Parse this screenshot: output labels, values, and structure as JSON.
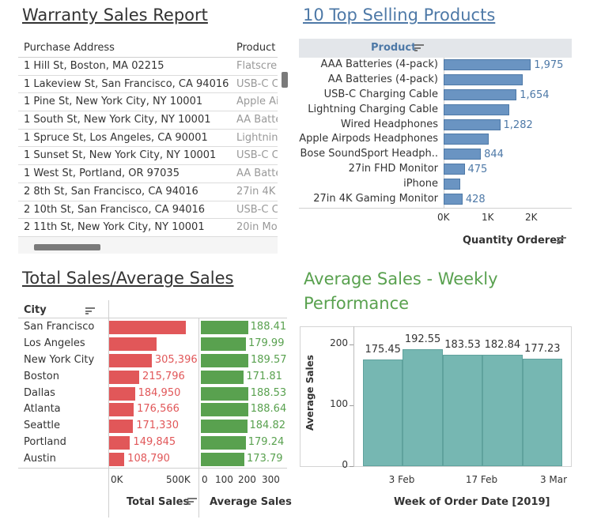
{
  "warranty": {
    "title": "Warranty Sales Report",
    "columns": [
      "Purchase Address",
      "Product"
    ],
    "rows": [
      [
        "1 Hill St, Boston, MA 02215",
        "Flatscre"
      ],
      [
        "1 Lakeview St, San Francisco, CA 94016",
        "USB-C C"
      ],
      [
        "1 Pine St, New York City, NY 10001",
        "Apple Ai"
      ],
      [
        "1 South St, New York City, NY 10001",
        "AA Batte"
      ],
      [
        "1 Spruce St, Los Angeles, CA 90001",
        "Lightnin"
      ],
      [
        "1 Sunset St, New York City, NY 10001",
        "USB-C C"
      ],
      [
        "1 West St, Portland, OR 97035",
        "AA Batte"
      ],
      [
        "2 8th St, San Francisco, CA 94016",
        "27in 4K"
      ],
      [
        "2 10th St, San Francisco, CA 94016",
        "USB-C C"
      ],
      [
        "2 11th St, New York City, NY 10001",
        "20in Mo"
      ]
    ]
  },
  "top_products": {
    "title": "10 Top Selling Products",
    "header": "Product",
    "x_axis_title": "Quantity Ordered",
    "color": "#4e79a7"
  },
  "city_panel": {
    "title": "Total Sales/Average Sales",
    "dim_header": "City",
    "total_axis_title": "Total Sales",
    "avg_axis_title": "Average Sales",
    "total_color": "#e15759",
    "avg_color": "#59a14f"
  },
  "weekly": {
    "title_line1": "Average Sales - Weekly",
    "title_line2": "Performance",
    "x_axis_title": "Week of Order Date [2019]",
    "y_axis_title": "Average Sales",
    "color": "#76b7b2"
  },
  "chart_data": [
    {
      "type": "bar",
      "orientation": "horizontal",
      "title": "10 Top Selling Products",
      "categories": [
        "AAA Batteries (4-pack)",
        "AA Batteries (4-pack)",
        "USB-C Charging Cable",
        "Lightning Charging Cable",
        "Wired Headphones",
        "Apple Airpods Headphones",
        "Bose SoundSport Headph..",
        "27in FHD Monitor",
        "iPhone",
        "27in 4K Gaming Monitor"
      ],
      "values": [
        1975,
        1790,
        1654,
        1480,
        1282,
        1030,
        844,
        475,
        385,
        428
      ],
      "labels": [
        "1,975",
        "",
        "1,654",
        "",
        "1,282",
        "",
        "844",
        "475",
        "",
        "428"
      ],
      "xlabel": "Quantity Ordered",
      "xlim": [
        0,
        2500
      ],
      "xticks": [
        "0K",
        "1K",
        "2K"
      ]
    },
    {
      "type": "bar",
      "orientation": "horizontal",
      "title": "Total Sales",
      "categories": [
        "San Francisco",
        "Los Angeles",
        "New York City",
        "Boston",
        "Dallas",
        "Atlanta",
        "Seattle",
        "Portland",
        "Austin"
      ],
      "values": [
        550000,
        340000,
        305396,
        215796,
        184950,
        176566,
        171330,
        149845,
        108790
      ],
      "labels": [
        "",
        "",
        "305,396",
        "215,796",
        "184,950",
        "176,566",
        "171,330",
        "149,845",
        "108,790"
      ],
      "xlabel": "Total Sales",
      "xlim": [
        0,
        600000
      ],
      "xticks": [
        "0K",
        "500K"
      ]
    },
    {
      "type": "bar",
      "orientation": "horizontal",
      "title": "Average Sales",
      "categories": [
        "San Francisco",
        "Los Angeles",
        "New York City",
        "Boston",
        "Dallas",
        "Atlanta",
        "Seattle",
        "Portland",
        "Austin"
      ],
      "values": [
        188.41,
        179.99,
        189.57,
        171.81,
        188.53,
        188.64,
        184.82,
        179.24,
        173.79
      ],
      "labels": [
        "188.41",
        "179.99",
        "189.57",
        "171.81",
        "188.53",
        "188.64",
        "184.82",
        "179.24",
        "173.79"
      ],
      "xlabel": "Average Sales",
      "xlim": [
        0,
        340
      ],
      "xticks": [
        "0",
        "100",
        "200",
        "300"
      ]
    },
    {
      "type": "bar",
      "title": "Average Sales - Weekly Performance",
      "categories": [
        "2019-01-27",
        "2019-02-03",
        "2019-02-10",
        "2019-02-17",
        "2019-02-24"
      ],
      "values": [
        175.45,
        192.55,
        183.53,
        182.84,
        177.23
      ],
      "labels": [
        "175.45",
        "192.55",
        "183.53",
        "182.84",
        "177.23"
      ],
      "xlabel": "Week of Order Date [2019]",
      "ylabel": "Average Sales",
      "ylim": [
        0,
        220
      ],
      "yticks": [
        "0",
        "100",
        "200"
      ],
      "xticks": [
        "3 Feb",
        "17 Feb",
        "3 Mar"
      ]
    }
  ]
}
